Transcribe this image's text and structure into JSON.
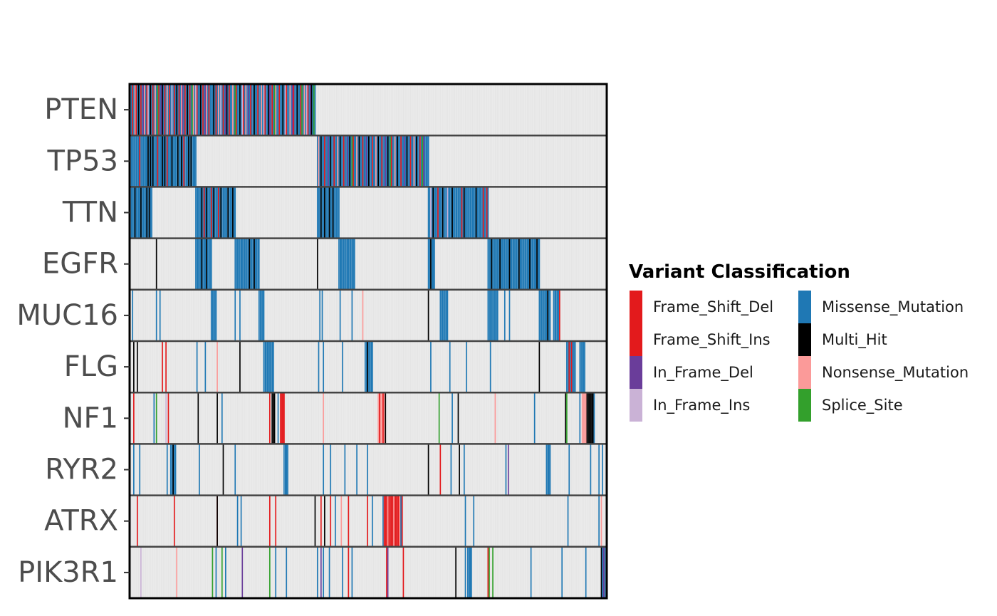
{
  "chart_data": {
    "type": "heatmap",
    "title": "",
    "xlabel": "",
    "ylabel": "",
    "genes": [
      "PTEN",
      "TP53",
      "TTN",
      "EGFR",
      "MUC16",
      "FLG",
      "NF1",
      "RYR2",
      "ATRX",
      "PIK3R1"
    ],
    "sample_count": 400,
    "background_color": "#e5e5e5",
    "legend": {
      "title": "Variant Classification",
      "placement": "right",
      "entries": [
        {
          "name": "Frame_Shift_Del",
          "color": "#e31a1c"
        },
        {
          "name": "Frame_Shift_Ins",
          "color": "#e31a1c"
        },
        {
          "name": "In_Frame_Del",
          "color": "#6a3d9a"
        },
        {
          "name": "In_Frame_Ins",
          "color": "#cab2d6"
        },
        {
          "name": "Missense_Mutation",
          "color": "#1f78b4"
        },
        {
          "name": "Multi_Hit",
          "color": "#000000"
        },
        {
          "name": "Nonsense_Mutation",
          "color": "#fb9a99"
        },
        {
          "name": "Splice_Site",
          "color": "#33a02c"
        }
      ]
    },
    "mutations": {
      "PTEN": [
        {
          "start": 0,
          "end": 155,
          "class": "Missense_Mutation"
        },
        {
          "at": [
            2,
            5,
            9,
            14,
            19,
            24,
            29,
            33,
            37,
            41,
            46,
            50,
            56,
            61,
            66,
            72,
            78,
            83,
            89,
            95,
            101,
            107,
            113,
            119,
            125,
            131,
            137,
            143,
            149
          ],
          "class": "Frame_Shift_Del"
        },
        {
          "at": [
            4,
            12,
            21,
            31,
            43,
            53,
            64,
            74,
            86,
            97,
            110,
            122,
            134,
            146
          ],
          "class": "Nonsense_Mutation"
        },
        {
          "at": [
            7,
            17,
            27,
            39,
            48,
            59,
            70,
            81,
            92,
            104,
            116,
            128,
            140,
            152
          ],
          "class": "Multi_Hit"
        },
        {
          "at": [
            11,
            26,
            44,
            63,
            80,
            99,
            117,
            136,
            151
          ],
          "class": "In_Frame_Del"
        },
        {
          "at": [
            15,
            35,
            55,
            76,
            94,
            112,
            130,
            148
          ],
          "class": "In_Frame_Ins"
        },
        {
          "at": [
            23,
            52,
            88,
            121,
            144,
            154
          ],
          "class": "Splice_Site"
        }
      ],
      "TP53": [
        {
          "start": 0,
          "end": 55,
          "class": "Missense_Mutation"
        },
        {
          "start": 157,
          "end": 250,
          "class": "Missense_Mutation"
        },
        {
          "at": [
            15,
            17,
            19,
            27,
            29,
            35,
            40,
            43,
            49,
            51
          ],
          "class": "Multi_Hit"
        },
        {
          "at": [
            8,
            23,
            31,
            45
          ],
          "class": "Frame_Shift_Del"
        },
        {
          "at": [
            160,
            168,
            176,
            184,
            192,
            200,
            208,
            216,
            224,
            232,
            240
          ],
          "class": "Multi_Hit"
        },
        {
          "at": [
            163,
            171,
            179,
            187,
            195,
            203,
            211,
            219,
            227,
            235,
            243
          ],
          "class": "Frame_Shift_Del"
        },
        {
          "at": [
            158,
            174,
            190,
            206,
            222,
            238
          ],
          "class": "Nonsense_Mutation"
        },
        {
          "at": [
            166,
            182,
            198,
            214,
            230,
            246
          ],
          "class": "In_Frame_Del"
        },
        {
          "at": [
            186,
            218,
            245
          ],
          "class": "Splice_Site"
        }
      ],
      "TTN": [
        {
          "start": 0,
          "end": 18,
          "class": "Missense_Mutation"
        },
        {
          "start": 55,
          "end": 88,
          "class": "Missense_Mutation"
        },
        {
          "start": 157,
          "end": 175,
          "class": "Missense_Mutation"
        },
        {
          "start": 250,
          "end": 300,
          "class": "Missense_Mutation"
        },
        {
          "at": [
            4,
            9,
            14,
            16
          ],
          "class": "Multi_Hit"
        },
        {
          "at": [
            60,
            64,
            70,
            76,
            82,
            86
          ],
          "class": "Multi_Hit"
        },
        {
          "at": [
            62,
            68,
            74
          ],
          "class": "Frame_Shift_Del"
        },
        {
          "at": [
            160,
            163,
            167,
            170
          ],
          "class": "Multi_Hit"
        },
        {
          "at": [
            254,
            262,
            270,
            280,
            290
          ],
          "class": "Multi_Hit"
        },
        {
          "at": [
            258,
            278,
            296,
            299
          ],
          "class": "Frame_Shift_Del"
        },
        {
          "at": [
            252,
            266
          ],
          "class": "In_Frame_Ins"
        }
      ],
      "EGFR": [
        {
          "at": [
            22
          ],
          "class": "Multi_Hit"
        },
        {
          "start": 55,
          "end": 68,
          "class": "Missense_Mutation"
        },
        {
          "start": 88,
          "end": 108,
          "class": "Missense_Mutation"
        },
        {
          "at": [
            60,
            64,
            100,
            104
          ],
          "class": "Multi_Hit"
        },
        {
          "at": [
            157
          ],
          "class": "Multi_Hit"
        },
        {
          "start": 175,
          "end": 188,
          "class": "Missense_Mutation"
        },
        {
          "start": 250,
          "end": 255,
          "class": "Missense_Mutation"
        },
        {
          "at": [
            252
          ],
          "class": "Multi_Hit"
        },
        {
          "start": 300,
          "end": 343,
          "class": "Missense_Mutation"
        },
        {
          "at": [
            303,
            310,
            318,
            326,
            335,
            341
          ],
          "class": "Multi_Hit"
        }
      ],
      "MUC16": [
        {
          "at": [
            2,
            22,
            25
          ],
          "class": "Missense_Mutation"
        },
        {
          "start": 68,
          "end": 72,
          "class": "Missense_Mutation"
        },
        {
          "at": [
            88,
            92
          ],
          "class": "Missense_Mutation"
        },
        {
          "start": 108,
          "end": 112,
          "class": "Missense_Mutation"
        },
        {
          "at": [
            159,
            161,
            176,
            186
          ],
          "class": "Missense_Mutation"
        },
        {
          "at": [
            195
          ],
          "class": "Nonsense_Mutation"
        },
        {
          "at": [
            250
          ],
          "class": "Multi_Hit"
        },
        {
          "start": 260,
          "end": 266,
          "class": "Missense_Mutation"
        },
        {
          "start": 300,
          "end": 308,
          "class": "Missense_Mutation"
        },
        {
          "at": [
            314,
            318
          ],
          "class": "Missense_Mutation"
        },
        {
          "start": 343,
          "end": 352,
          "class": "Missense_Mutation"
        },
        {
          "at": [
            350
          ],
          "class": "Multi_Hit"
        },
        {
          "start": 355,
          "end": 359,
          "class": "Missense_Mutation"
        },
        {
          "at": [
            360
          ],
          "class": "Frame_Shift_Del"
        }
      ],
      "FLG": [
        {
          "at": [
            3,
            6
          ],
          "class": "Multi_Hit"
        },
        {
          "at": [
            27,
            30
          ],
          "class": "Frame_Shift_Del"
        },
        {
          "at": [
            56,
            63
          ],
          "class": "Missense_Mutation"
        },
        {
          "at": [
            73
          ],
          "class": "Nonsense_Mutation"
        },
        {
          "at": [
            92
          ],
          "class": "Multi_Hit"
        },
        {
          "start": 112,
          "end": 120,
          "class": "Missense_Mutation"
        },
        {
          "at": [
            158,
            162,
            178
          ],
          "class": "Missense_Mutation"
        },
        {
          "start": 197,
          "end": 203,
          "class": "Missense_Mutation"
        },
        {
          "at": [
            199
          ],
          "class": "Multi_Hit"
        },
        {
          "at": [
            252,
            268,
            282,
            302
          ],
          "class": "Missense_Mutation"
        },
        {
          "at": [
            343
          ],
          "class": "Multi_Hit"
        },
        {
          "start": 366,
          "end": 373,
          "class": "Missense_Mutation"
        },
        {
          "at": [
            368,
            370
          ],
          "class": "Frame_Shift_Del"
        },
        {
          "start": 377,
          "end": 381,
          "class": "Missense_Mutation"
        }
      ],
      "NF1": [
        {
          "at": [
            3
          ],
          "class": "Frame_Shift_Del"
        },
        {
          "at": [
            20
          ],
          "class": "Missense_Mutation"
        },
        {
          "at": [
            22
          ],
          "class": "Splice_Site"
        },
        {
          "at": [
            30
          ],
          "class": "In_Frame_Ins"
        },
        {
          "at": [
            32
          ],
          "class": "Frame_Shift_Del"
        },
        {
          "at": [
            57,
            73
          ],
          "class": "Multi_Hit"
        },
        {
          "at": [
            77
          ],
          "class": "Missense_Mutation"
        },
        {
          "at": [
            117
          ],
          "class": "Frame_Shift_Del"
        },
        {
          "start": 119,
          "end": 121,
          "class": "Multi_Hit"
        },
        {
          "at": [
            124
          ],
          "class": "Missense_Mutation"
        },
        {
          "start": 126,
          "end": 129,
          "class": "Frame_Shift_Del"
        },
        {
          "at": [
            162
          ],
          "class": "Nonsense_Mutation"
        },
        {
          "start": 208,
          "end": 213,
          "class": "Nonsense_Mutation"
        },
        {
          "at": [
            209,
            212
          ],
          "class": "Frame_Shift_Del"
        },
        {
          "at": [
            214
          ],
          "class": "Multi_Hit"
        },
        {
          "at": [
            259
          ],
          "class": "Splice_Site"
        },
        {
          "at": [
            270
          ],
          "class": "Missense_Mutation"
        },
        {
          "at": [
            275
          ],
          "class": "Multi_Hit"
        },
        {
          "at": [
            306
          ],
          "class": "Nonsense_Mutation"
        },
        {
          "at": [
            339
          ],
          "class": "Missense_Mutation"
        },
        {
          "at": [
            365
          ],
          "class": "Multi_Hit"
        },
        {
          "at": [
            366
          ],
          "class": "Splice_Site"
        },
        {
          "at": [
            377
          ],
          "class": "Missense_Mutation"
        },
        {
          "start": 379,
          "end": 382,
          "class": "Nonsense_Mutation"
        },
        {
          "start": 383,
          "end": 388,
          "class": "Multi_Hit"
        },
        {
          "at": [
            389
          ],
          "class": "Missense_Mutation"
        }
      ],
      "RYR2": [
        {
          "at": [
            3,
            8,
            31,
            34
          ],
          "class": "Missense_Mutation"
        },
        {
          "start": 34,
          "end": 38,
          "class": "Missense_Mutation"
        },
        {
          "at": [
            36
          ],
          "class": "Multi_Hit"
        },
        {
          "at": [
            58
          ],
          "class": "Missense_Mutation"
        },
        {
          "at": [
            78
          ],
          "class": "Multi_Hit"
        },
        {
          "at": [
            88
          ],
          "class": "Missense_Mutation"
        },
        {
          "start": 129,
          "end": 132,
          "class": "Missense_Mutation"
        },
        {
          "at": [
            162,
            168,
            180,
            190,
            199
          ],
          "class": "Missense_Mutation"
        },
        {
          "at": [
            250
          ],
          "class": "Multi_Hit"
        },
        {
          "at": [
            260
          ],
          "class": "Frame_Shift_Del"
        },
        {
          "at": [
            269
          ],
          "class": "Missense_Mutation"
        },
        {
          "at": [
            276
          ],
          "class": "Multi_Hit"
        },
        {
          "at": [
            280
          ],
          "class": "Missense_Mutation"
        },
        {
          "at": [
            315
          ],
          "class": "Missense_Mutation"
        },
        {
          "at": [
            317
          ],
          "class": "In_Frame_Del"
        },
        {
          "start": 349,
          "end": 352,
          "class": "Missense_Mutation"
        },
        {
          "at": [
            368,
            386,
            393,
            396
          ],
          "class": "Missense_Mutation"
        }
      ],
      "ATRX": [
        {
          "at": [
            6,
            37,
            73
          ],
          "class": "Frame_Shift_Del"
        },
        {
          "at": [
            73
          ],
          "class": "Multi_Hit"
        },
        {
          "at": [
            90,
            93
          ],
          "class": "Missense_Mutation"
        },
        {
          "at": [
            117,
            122
          ],
          "class": "Frame_Shift_Del"
        },
        {
          "at": [
            155
          ],
          "class": "Multi_Hit"
        },
        {
          "at": [
            160,
            168,
            183,
            199,
            216
          ],
          "class": "Frame_Shift_Del"
        },
        {
          "at": [
            163
          ],
          "class": "Multi_Hit"
        },
        {
          "at": [
            172,
            203,
            212
          ],
          "class": "Missense_Mutation"
        },
        {
          "at": [
            177
          ],
          "class": "Nonsense_Mutation"
        },
        {
          "start": 213,
          "end": 228,
          "class": "Frame_Shift_Del"
        },
        {
          "at": [
            216,
            221,
            226
          ],
          "class": "Nonsense_Mutation"
        },
        {
          "at": [
            227
          ],
          "class": "Missense_Mutation"
        },
        {
          "at": [
            281,
            288,
            367,
            393
          ],
          "class": "Missense_Mutation"
        },
        {
          "at": [
            395
          ],
          "class": "Nonsense_Mutation"
        }
      ],
      "PIK3R1": [
        {
          "at": [
            9
          ],
          "class": "In_Frame_Ins"
        },
        {
          "at": [
            39
          ],
          "class": "Nonsense_Mutation"
        },
        {
          "at": [
            69,
            77
          ],
          "class": "Splice_Site"
        },
        {
          "at": [
            72,
            80
          ],
          "class": "Missense_Mutation"
        },
        {
          "at": [
            94
          ],
          "class": "In_Frame_Del"
        },
        {
          "at": [
            117
          ],
          "class": "Splice_Site"
        },
        {
          "at": [
            122,
            131
          ],
          "class": "Missense_Mutation"
        },
        {
          "at": [
            157,
            162,
            167,
            178,
            186
          ],
          "class": "Missense_Mutation"
        },
        {
          "at": [
            160
          ],
          "class": "In_Frame_Del"
        },
        {
          "at": [
            183,
            215,
            229
          ],
          "class": "Frame_Shift_Del"
        },
        {
          "at": [
            216
          ],
          "class": "In_Frame_Del"
        },
        {
          "at": [
            273
          ],
          "class": "Multi_Hit"
        },
        {
          "at": [
            281
          ],
          "class": "Missense_Mutation"
        },
        {
          "start": 283,
          "end": 286,
          "class": "Missense_Mutation"
        },
        {
          "at": [
            300
          ],
          "class": "Frame_Shift_Del"
        },
        {
          "at": [
            301,
            304
          ],
          "class": "Splice_Site"
        },
        {
          "at": [
            336,
            362,
            382
          ],
          "class": "Missense_Mutation"
        },
        {
          "at": [
            395
          ],
          "class": "Multi_Hit"
        },
        {
          "at": [
            396,
            398
          ],
          "class": "Missense_Mutation"
        },
        {
          "at": [
            397
          ],
          "class": "In_Frame_Del"
        }
      ]
    }
  }
}
